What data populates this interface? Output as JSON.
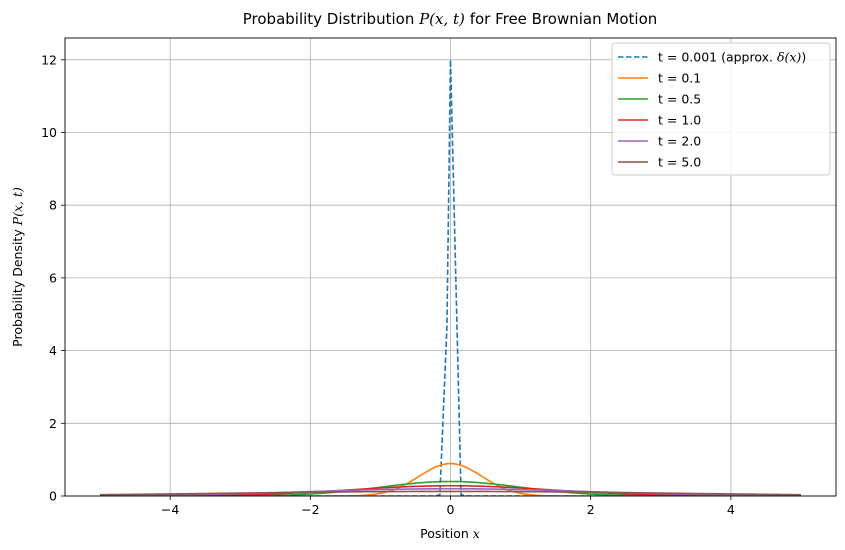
{
  "chart_data": {
    "type": "line",
    "title_prefix": "Probability Distribution ",
    "title_math": "P(x, t)",
    "title_suffix": " for Free Brownian Motion",
    "xlabel_prefix": "Position ",
    "xlabel_math": "x",
    "ylabel_prefix": "Probability Density ",
    "ylabel_math": "P(x, t)",
    "xlim": [
      -5.5,
      5.5
    ],
    "ylim": [
      0,
      12.6
    ],
    "xticks": [
      -4,
      -2,
      0,
      2,
      4
    ],
    "yticks": [
      0,
      2,
      4,
      6,
      8,
      10,
      12
    ],
    "xtick_labels": [
      "−4",
      "−2",
      "0",
      "2",
      "4"
    ],
    "ytick_labels": [
      "0",
      "2",
      "4",
      "6",
      "8",
      "10",
      "12"
    ],
    "grid": true,
    "legend_position": "top-right",
    "x_range": [
      -5,
      5
    ],
    "diffusion_coefficient": 1.0,
    "series": [
      {
        "name_prefix": "t = 0.001 (approx. ",
        "name_math": "δ(x)",
        "name_suffix": ")",
        "t": 0.001,
        "color": "#1f77b4",
        "dashed": true,
        "sample_spacing": 0.101,
        "peak": 12.0
      },
      {
        "name_prefix": "t = 0.1",
        "name_math": "",
        "name_suffix": "",
        "t": 0.1,
        "color": "#ff7f0e",
        "dashed": false
      },
      {
        "name_prefix": "t = 0.5",
        "name_math": "",
        "name_suffix": "",
        "t": 0.5,
        "color": "#2ca02c",
        "dashed": false
      },
      {
        "name_prefix": "t = 1.0",
        "name_math": "",
        "name_suffix": "",
        "t": 1.0,
        "color": "#d62728",
        "dashed": false
      },
      {
        "name_prefix": "t = 2.0",
        "name_math": "",
        "name_suffix": "",
        "t": 2.0,
        "color": "#9467bd",
        "dashed": false
      },
      {
        "name_prefix": "t = 5.0",
        "name_math": "",
        "name_suffix": "",
        "t": 5.0,
        "color": "#8c564b",
        "dashed": false
      }
    ]
  }
}
